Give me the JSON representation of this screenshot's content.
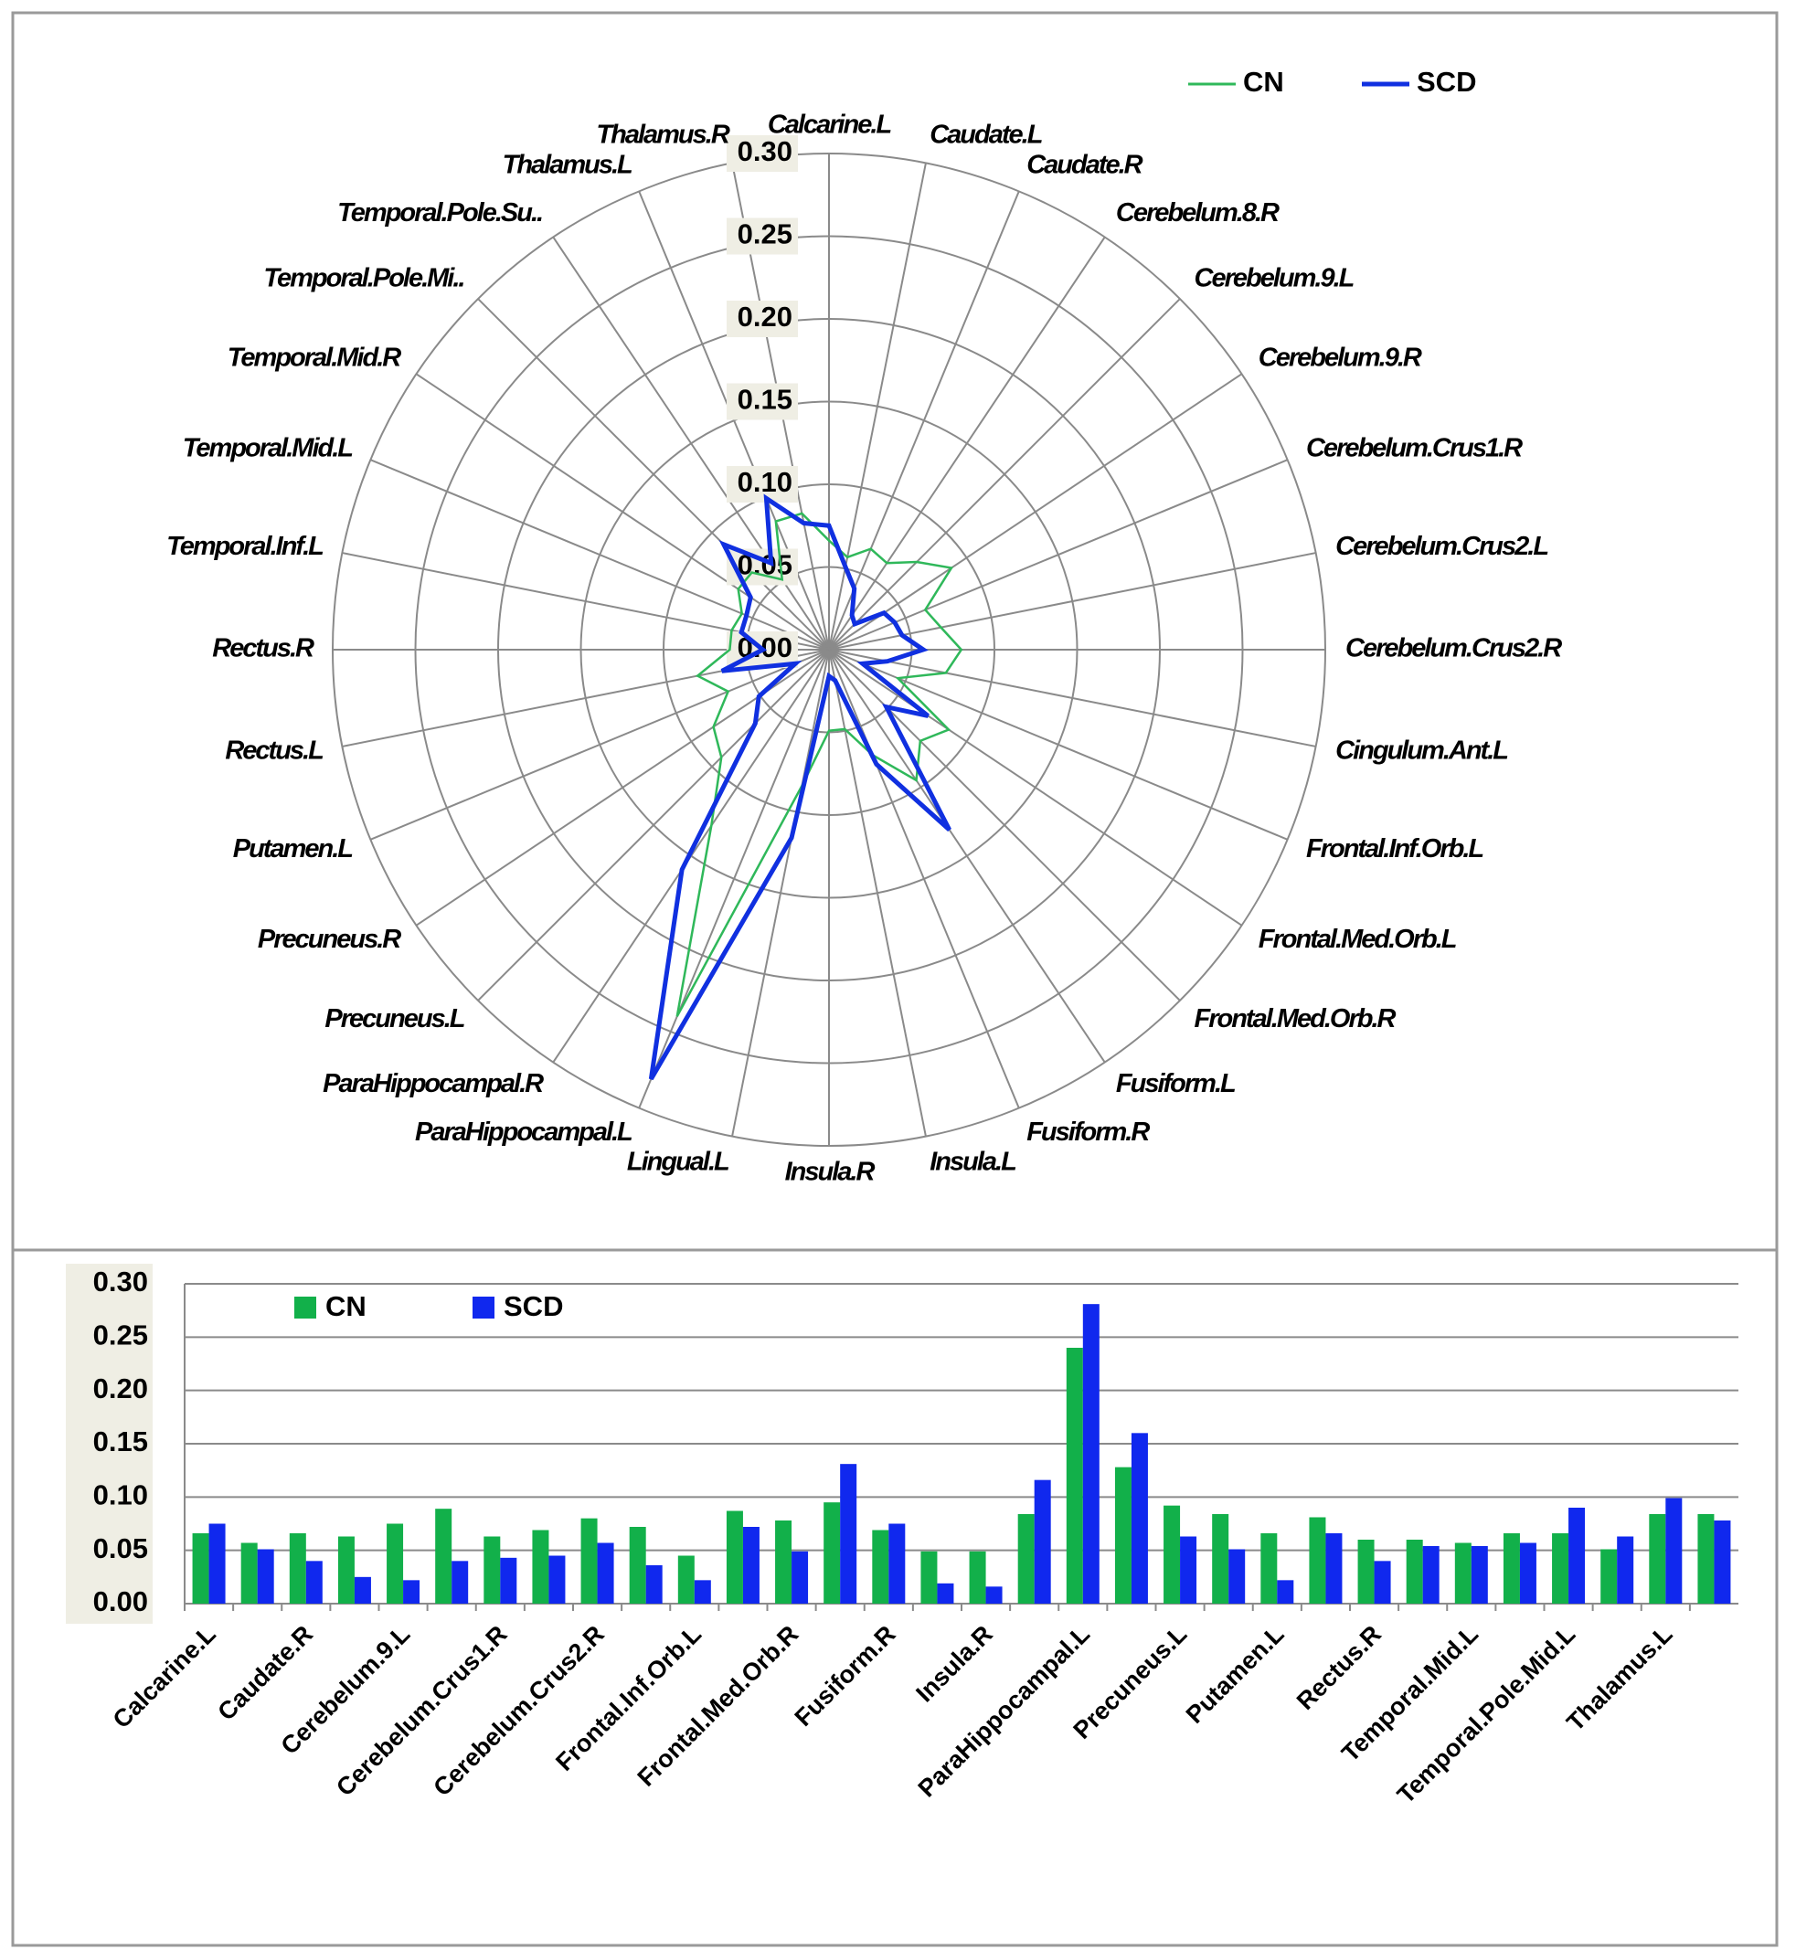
{
  "chart_data": [
    {
      "type": "radar",
      "categories": [
        "Calcarine.L",
        "Caudate.L",
        "Caudate.R",
        "Cerebelum.8.R",
        "Cerebelum.9.L",
        "Cerebelum.9.R",
        "Cerebelum.Crus1.R",
        "Cerebelum.Crus2.L",
        "Cerebelum.Crus2.R",
        "Cingulum.Ant.L",
        "Frontal.Inf.Orb.L",
        "Frontal.Med.Orb.L",
        "Frontal.Med.Orb.R",
        "Fusiform.L",
        "Fusiform.R",
        "Insula.L",
        "Insula.R",
        "Lingual.L",
        "ParaHippocampal.L",
        "ParaHippocampal.R",
        "Precuneus.L",
        "Precuneus.R",
        "Putamen.L",
        "Rectus.L",
        "Rectus.R",
        "Temporal.Inf.L",
        "Temporal.Mid.L",
        "Temporal.Mid.R",
        "Temporal.Pole.Mi..",
        "Temporal.Pole.Su..",
        "Thalamus.L",
        "Thalamus.R"
      ],
      "series": [
        {
          "name": "CN",
          "color": "#2fb85a",
          "values": [
            0.066,
            0.057,
            0.066,
            0.063,
            0.075,
            0.089,
            0.063,
            0.069,
            0.08,
            0.072,
            0.045,
            0.087,
            0.078,
            0.095,
            0.069,
            0.049,
            0.049,
            0.084,
            0.24,
            0.128,
            0.092,
            0.084,
            0.066,
            0.081,
            0.06,
            0.06,
            0.057,
            0.066,
            0.066,
            0.051,
            0.084,
            0.084
          ]
        },
        {
          "name": "SCD",
          "color": "#1030e0",
          "values": [
            0.075,
            0.051,
            0.04,
            0.025,
            0.022,
            0.04,
            0.043,
            0.045,
            0.057,
            0.036,
            0.022,
            0.072,
            0.049,
            0.131,
            0.075,
            0.019,
            0.016,
            0.116,
            0.281,
            0.16,
            0.063,
            0.051,
            0.022,
            0.066,
            0.04,
            0.054,
            0.054,
            0.057,
            0.09,
            0.063,
            0.099,
            0.078
          ]
        }
      ],
      "ylim": [
        0,
        0.3
      ],
      "yticks": [
        {
          "value": 0,
          "label": "0.00"
        },
        {
          "value": 0.05,
          "label": "0.05"
        },
        {
          "value": 0.1,
          "label": "0.10"
        },
        {
          "value": 0.15,
          "label": "0.15"
        },
        {
          "value": 0.2,
          "label": "0.20"
        },
        {
          "value": 0.25,
          "label": "0.25"
        },
        {
          "value": 0.3,
          "label": "0.30"
        }
      ],
      "legend": "top-right"
    },
    {
      "type": "bar",
      "categories": [
        "Calcarine.L",
        null,
        "Caudate.R",
        null,
        "Cerebelum.9.L",
        null,
        "Cerebelum.Crus1.R",
        null,
        "Cerebelum.Crus2.R",
        null,
        "Frontal.Inf.Orb.L",
        null,
        "Frontal.Med.Orb.R",
        null,
        "Fusiform.R",
        null,
        "Insula.R",
        null,
        "ParaHippocampal.L",
        null,
        "Precuneus.L",
        null,
        "Putamen.L",
        null,
        "Rectus.R",
        null,
        "Temporal.Mid.L",
        null,
        "Temporal.Pole.Mid.L",
        null,
        "Thalamus.L",
        null
      ],
      "series": [
        {
          "name": "CN",
          "color": "#12b04a",
          "values": [
            0.066,
            0.057,
            0.066,
            0.063,
            0.075,
            0.089,
            0.063,
            0.069,
            0.08,
            0.072,
            0.045,
            0.087,
            0.078,
            0.095,
            0.069,
            0.049,
            0.049,
            0.084,
            0.24,
            0.128,
            0.092,
            0.084,
            0.066,
            0.081,
            0.06,
            0.06,
            0.057,
            0.066,
            0.066,
            0.051,
            0.084,
            0.084
          ]
        },
        {
          "name": "SCD",
          "color": "#1028ee",
          "values": [
            0.075,
            0.051,
            0.04,
            0.025,
            0.022,
            0.04,
            0.043,
            0.045,
            0.057,
            0.036,
            0.022,
            0.072,
            0.049,
            0.131,
            0.075,
            0.019,
            0.016,
            0.116,
            0.281,
            0.16,
            0.063,
            0.051,
            0.022,
            0.066,
            0.04,
            0.054,
            0.054,
            0.057,
            0.09,
            0.063,
            0.099,
            0.078
          ]
        }
      ],
      "ylim": [
        0,
        0.3
      ],
      "yticks": [
        {
          "value": 0,
          "label": "0.00"
        },
        {
          "value": 0.05,
          "label": "0.05"
        },
        {
          "value": 0.1,
          "label": "0.10"
        },
        {
          "value": 0.15,
          "label": "0.15"
        },
        {
          "value": 0.2,
          "label": "0.20"
        },
        {
          "value": 0.25,
          "label": "0.25"
        },
        {
          "value": 0.3,
          "label": "0.30"
        }
      ],
      "grid": true,
      "legend": "top-left"
    }
  ]
}
